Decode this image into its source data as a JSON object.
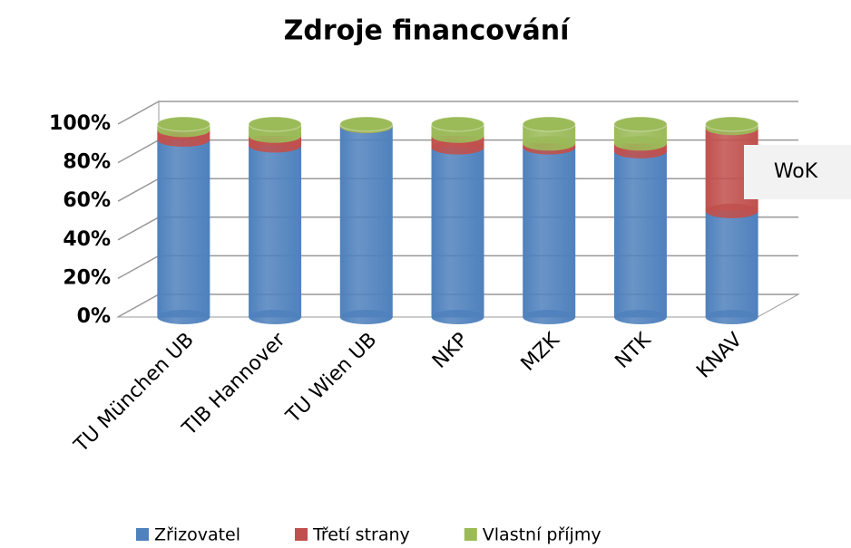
{
  "chart_data": {
    "type": "bar3d_stacked",
    "title": "Zdroje financování",
    "categories": [
      "TU München UB",
      "TIB Hannover",
      "TU Wien UB",
      "NKP",
      "MZK",
      "NTK",
      "KNAV"
    ],
    "series": [
      {
        "name": "Zřizovatel",
        "color": "#4f81bd",
        "values": [
          92,
          89,
          99,
          88,
          88,
          86,
          55
        ]
      },
      {
        "name": "Třetí strany",
        "color": "#c0504d",
        "values": [
          5,
          5,
          0,
          6,
          2,
          4,
          43
        ]
      },
      {
        "name": "Vlastní příjmy",
        "color": "#9bbb59",
        "values": [
          3,
          6,
          1,
          6,
          10,
          10,
          2
        ]
      }
    ],
    "ylim": [
      0,
      100
    ],
    "yticks": [
      {
        "value": 0,
        "label": "0%"
      },
      {
        "value": 20,
        "label": "20%"
      },
      {
        "value": 40,
        "label": "40%"
      },
      {
        "value": 60,
        "label": "60%"
      },
      {
        "value": 80,
        "label": "80%"
      },
      {
        "value": 100,
        "label": "100%"
      }
    ],
    "grid": true,
    "legend": "bottom",
    "annotation": "WoK"
  }
}
